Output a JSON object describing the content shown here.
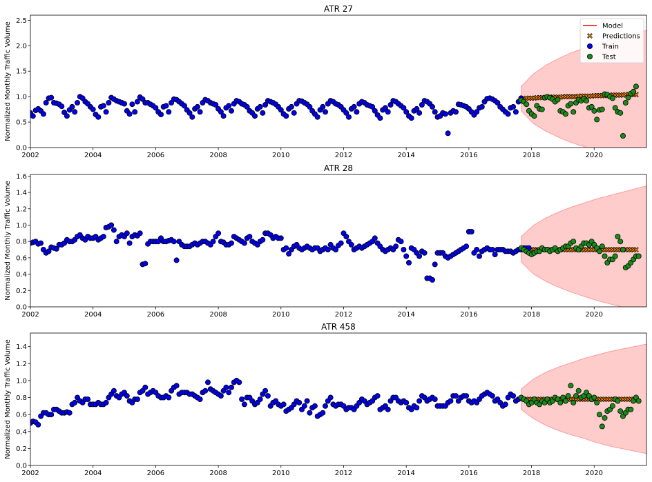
{
  "colors": {
    "model": "#e8291c",
    "band": "#ff9999",
    "predictions": "#ff8c00",
    "train": "#0000ee",
    "test": "#1b8a1b",
    "edge": "#000000"
  },
  "legend": {
    "model": "Model",
    "predictions": "Predictions",
    "train": "Train",
    "test": "Test",
    "placement": "top-right"
  },
  "chart_data": [
    {
      "type": "scatter",
      "title": "ATR 27",
      "xlabel": "",
      "ylabel": "Normalized Monthly Traffic Volume",
      "xlim": [
        2002.0,
        2021.67
      ],
      "ylim": [
        0,
        2.6
      ],
      "xticks": [
        2002,
        2004,
        2006,
        2008,
        2010,
        2012,
        2014,
        2016,
        2018,
        2020
      ],
      "yticks": [
        0.0,
        0.5,
        1.0,
        1.5,
        2.0,
        2.5
      ],
      "tick_decimals": 1,
      "has_legend": true,
      "train_start": 2002.0,
      "train": [
        0.68,
        0.62,
        0.73,
        0.76,
        0.72,
        0.66,
        0.88,
        0.97,
        0.98,
        0.88,
        0.87,
        0.85,
        0.81,
        0.69,
        0.62,
        0.74,
        0.8,
        0.7,
        0.88,
        1.0,
        0.97,
        0.9,
        0.86,
        0.8,
        0.75,
        0.65,
        0.6,
        0.8,
        0.82,
        0.7,
        0.88,
        0.98,
        0.95,
        0.92,
        0.9,
        0.88,
        0.86,
        0.72,
        0.66,
        0.85,
        0.7,
        0.9,
        0.99,
        0.95,
        0.88,
        0.88,
        0.85,
        0.82,
        0.78,
        0.7,
        0.65,
        0.8,
        0.82,
        0.7,
        0.88,
        0.95,
        0.94,
        0.9,
        0.86,
        0.82,
        0.74,
        0.68,
        0.6,
        0.76,
        0.8,
        0.7,
        0.88,
        0.94,
        0.92,
        0.88,
        0.86,
        0.84,
        0.76,
        0.7,
        0.62,
        0.78,
        0.82,
        0.72,
        0.86,
        0.92,
        0.9,
        0.86,
        0.84,
        0.8,
        0.72,
        0.68,
        0.62,
        0.76,
        0.8,
        0.68,
        0.84,
        0.92,
        0.9,
        0.88,
        0.85,
        0.8,
        0.74,
        0.66,
        0.62,
        0.76,
        0.8,
        0.68,
        0.86,
        0.92,
        0.91,
        0.88,
        0.85,
        0.8,
        0.72,
        0.66,
        0.6,
        0.74,
        0.8,
        0.7,
        0.86,
        0.92,
        0.9,
        0.86,
        0.84,
        0.8,
        0.74,
        0.68,
        0.6,
        0.76,
        0.8,
        0.7,
        0.86,
        0.9,
        0.88,
        0.84,
        0.82,
        0.8,
        0.72,
        0.64,
        0.58,
        0.74,
        0.78,
        0.7,
        0.84,
        0.92,
        0.9,
        0.86,
        0.82,
        0.78,
        0.7,
        0.62,
        0.58,
        0.72,
        0.76,
        0.68,
        0.84,
        0.92,
        0.9,
        0.86,
        0.8,
        0.7,
        0.6,
        0.62,
        0.68,
        0.66,
        0.28,
        0.68,
        0.72,
        0.7,
        0.85,
        0.84,
        0.82,
        0.8,
        0.76,
        0.7,
        0.64,
        0.7,
        0.78,
        0.8,
        0.9,
        0.96,
        0.97,
        0.95,
        0.92,
        0.88,
        0.8,
        0.75,
        0.7,
        0.66,
        0.78,
        0.8,
        0.7,
        0.9,
        0.97
      ],
      "test_start": 2017.67,
      "test": [
        0.93,
        0.9,
        0.85,
        0.72,
        0.66,
        0.62,
        0.82,
        0.76,
        0.75,
        0.98,
        1.0,
        0.98,
        0.95,
        0.9,
        0.94,
        0.72,
        0.7,
        0.66,
        0.82,
        0.86,
        0.7,
        0.88,
        0.94,
        0.92,
        0.96,
        0.92,
        0.78,
        0.8,
        0.72,
        0.55,
        0.74,
        0.75,
        1.05,
        1.04,
        1.0,
        0.97,
        0.78,
        0.7,
        0.68,
        0.23,
        0.88,
        0.98,
        1.06,
        1.1,
        1.2
      ],
      "pred_start": 2017.67,
      "pred": [
        0.96,
        0.96,
        0.97,
        0.97,
        0.97,
        0.97,
        0.98,
        0.98,
        0.98,
        0.98,
        0.98,
        0.99,
        0.99,
        0.99,
        0.99,
        0.99,
        1.0,
        1.0,
        1.0,
        1.0,
        1.0,
        1.0,
        1.01,
        1.01,
        1.01,
        1.01,
        1.01,
        1.01,
        1.02,
        1.02,
        1.02,
        1.02,
        1.02,
        1.02,
        1.03,
        1.03,
        1.03,
        1.03,
        1.03,
        1.03,
        1.04,
        1.04,
        1.04,
        1.04,
        1.04
      ],
      "band_upper": [
        1.2,
        1.45,
        1.62,
        1.75,
        1.86,
        1.95,
        2.04,
        2.11,
        2.18,
        2.24,
        2.3
      ],
      "band_lower": [
        0.72,
        0.47,
        0.32,
        0.2,
        0.1,
        0.02,
        -0.05,
        -0.12,
        -0.18,
        -0.24,
        -0.3
      ]
    },
    {
      "type": "scatter",
      "title": "ATR 28",
      "xlabel": "",
      "ylabel": "Normalized Monthly Traffic Volume",
      "xlim": [
        2002.0,
        2021.67
      ],
      "ylim": [
        0,
        1.62
      ],
      "xticks": [
        2002,
        2004,
        2006,
        2008,
        2010,
        2012,
        2014,
        2016,
        2018,
        2020
      ],
      "yticks": [
        0.0,
        0.2,
        0.4,
        0.6,
        0.8,
        1.0,
        1.2,
        1.4,
        1.6
      ],
      "tick_decimals": 1,
      "has_legend": false,
      "train_start": 2002.0,
      "train": [
        0.78,
        0.79,
        0.8,
        0.77,
        0.78,
        0.7,
        0.66,
        0.68,
        0.73,
        0.72,
        0.71,
        0.76,
        0.76,
        0.78,
        0.82,
        0.8,
        0.8,
        0.82,
        0.86,
        0.88,
        0.84,
        0.82,
        0.86,
        0.84,
        0.84,
        0.86,
        0.82,
        0.84,
        0.86,
        0.97,
        0.98,
        1.0,
        0.94,
        0.8,
        0.86,
        0.88,
        0.86,
        0.9,
        0.78,
        0.86,
        0.88,
        0.87,
        0.9,
        0.52,
        0.53,
        0.77,
        0.8,
        0.8,
        0.8,
        0.8,
        0.84,
        0.8,
        0.8,
        0.81,
        0.82,
        0.8,
        0.57,
        0.8,
        0.76,
        0.74,
        0.74,
        0.74,
        0.76,
        0.78,
        0.76,
        0.78,
        0.8,
        0.8,
        0.78,
        0.76,
        0.8,
        0.86,
        0.9,
        0.8,
        0.79,
        0.76,
        0.76,
        0.78,
        0.86,
        0.84,
        0.82,
        0.8,
        0.78,
        0.84,
        0.86,
        0.8,
        0.78,
        0.76,
        0.8,
        0.82,
        0.9,
        0.9,
        0.88,
        0.84,
        0.86,
        0.84,
        0.84,
        0.7,
        0.72,
        0.65,
        0.7,
        0.74,
        0.76,
        0.72,
        0.7,
        0.72,
        0.74,
        0.72,
        0.7,
        0.72,
        0.72,
        0.68,
        0.7,
        0.72,
        0.7,
        0.76,
        0.72,
        0.7,
        0.75,
        0.78,
        0.9,
        0.86,
        0.8,
        0.76,
        0.7,
        0.72,
        0.74,
        0.72,
        0.74,
        0.76,
        0.78,
        0.8,
        0.84,
        0.78,
        0.74,
        0.7,
        0.68,
        0.7,
        0.72,
        0.7,
        0.74,
        0.82,
        0.8,
        0.7,
        0.62,
        0.54,
        0.72,
        0.7,
        0.66,
        0.62,
        0.68,
        0.66,
        0.35,
        0.35,
        0.33,
        0.52,
        0.66,
        0.66,
        0.66,
        0.62,
        0.6,
        0.62,
        0.64,
        0.66,
        0.68,
        0.7,
        0.72,
        0.74,
        0.92,
        0.92,
        0.66,
        0.7,
        0.62,
        0.68,
        0.7,
        0.72,
        0.7,
        0.7,
        0.64,
        0.7,
        0.7,
        0.7,
        0.68,
        0.68,
        0.68,
        0.66,
        0.68,
        0.7,
        0.7,
        0.72,
        0.72,
        0.72
      ],
      "test_start": 2017.67,
      "test": [
        0.72,
        0.7,
        0.68,
        0.66,
        0.64,
        0.66,
        0.68,
        0.68,
        0.72,
        0.7,
        0.7,
        0.68,
        0.7,
        0.72,
        0.68,
        0.7,
        0.72,
        0.74,
        0.74,
        0.78,
        0.8,
        0.72,
        0.7,
        0.74,
        0.78,
        0.78,
        0.76,
        0.8,
        0.76,
        0.72,
        0.68,
        0.74,
        0.62,
        0.54,
        0.58,
        0.58,
        0.62,
        0.86,
        0.8,
        0.7,
        0.48,
        0.5,
        0.54,
        0.58,
        0.62,
        0.62
      ],
      "pred_start": 2017.67,
      "pred": [
        0.7,
        0.7,
        0.7,
        0.7,
        0.7,
        0.7,
        0.7,
        0.7,
        0.7,
        0.7,
        0.7,
        0.7,
        0.7,
        0.7,
        0.7,
        0.7,
        0.7,
        0.7,
        0.7,
        0.7,
        0.7,
        0.7,
        0.7,
        0.7,
        0.7,
        0.7,
        0.7,
        0.7,
        0.7,
        0.7,
        0.7,
        0.7,
        0.7,
        0.7,
        0.7,
        0.7,
        0.7,
        0.7,
        0.7,
        0.7,
        0.7,
        0.7,
        0.7,
        0.7,
        0.7
      ],
      "band_upper": [
        0.86,
        1.0,
        1.09,
        1.16,
        1.22,
        1.27,
        1.32,
        1.36,
        1.4,
        1.44,
        1.48
      ],
      "band_lower": [
        0.55,
        0.4,
        0.31,
        0.24,
        0.18,
        0.13,
        0.08,
        0.04,
        0.0,
        -0.04,
        -0.08
      ]
    },
    {
      "type": "scatter",
      "title": "ATR 458",
      "xlabel": "",
      "ylabel": "Normalized Monthly Traffic Volume",
      "xlim": [
        2002.0,
        2021.67
      ],
      "ylim": [
        0,
        1.56
      ],
      "xticks": [
        2002,
        2004,
        2006,
        2008,
        2010,
        2012,
        2014,
        2016,
        2018,
        2020
      ],
      "yticks": [
        0.0,
        0.2,
        0.4,
        0.6,
        0.8,
        1.0,
        1.2,
        1.4
      ],
      "tick_decimals": 1,
      "has_legend": false,
      "train_start": 2002.0,
      "train": [
        0.5,
        0.52,
        0.51,
        0.48,
        0.58,
        0.62,
        0.62,
        0.6,
        0.6,
        0.66,
        0.66,
        0.64,
        0.62,
        0.62,
        0.63,
        0.62,
        0.72,
        0.74,
        0.8,
        0.76,
        0.74,
        0.78,
        0.78,
        0.72,
        0.72,
        0.72,
        0.74,
        0.72,
        0.72,
        0.74,
        0.8,
        0.84,
        0.88,
        0.82,
        0.8,
        0.84,
        0.86,
        0.82,
        0.76,
        0.74,
        0.78,
        0.78,
        0.86,
        0.88,
        0.92,
        0.84,
        0.86,
        0.88,
        0.86,
        0.82,
        0.8,
        0.8,
        0.82,
        0.8,
        0.88,
        0.92,
        0.94,
        0.84,
        0.86,
        0.86,
        0.86,
        0.84,
        0.84,
        0.82,
        0.8,
        0.78,
        0.86,
        0.88,
        0.98,
        0.9,
        0.88,
        0.86,
        0.84,
        0.82,
        0.88,
        0.92,
        0.86,
        0.92,
        0.98,
        1.0,
        0.98,
        0.78,
        0.72,
        0.8,
        0.8,
        0.76,
        0.72,
        0.74,
        0.78,
        0.84,
        0.88,
        0.82,
        0.7,
        0.74,
        0.76,
        0.72,
        0.7,
        0.72,
        0.64,
        0.66,
        0.68,
        0.72,
        0.76,
        0.74,
        0.66,
        0.7,
        0.76,
        0.62,
        0.68,
        0.7,
        0.58,
        0.6,
        0.62,
        0.7,
        0.76,
        0.8,
        0.72,
        0.7,
        0.72,
        0.72,
        0.7,
        0.66,
        0.68,
        0.68,
        0.66,
        0.7,
        0.74,
        0.78,
        0.76,
        0.72,
        0.74,
        0.76,
        0.8,
        0.82,
        0.66,
        0.68,
        0.7,
        0.66,
        0.76,
        0.8,
        0.8,
        0.76,
        0.74,
        0.76,
        0.74,
        0.68,
        0.66,
        0.7,
        0.68,
        0.76,
        0.82,
        0.8,
        0.76,
        0.78,
        0.8,
        0.78,
        0.7,
        0.7,
        0.7,
        0.7,
        0.74,
        0.76,
        0.82,
        0.82,
        0.76,
        0.8,
        0.82,
        0.82,
        0.76,
        0.74,
        0.76,
        0.74,
        0.78,
        0.82,
        0.84,
        0.86,
        0.84,
        0.82,
        0.76,
        0.78,
        0.74,
        0.7,
        0.72,
        0.8,
        0.84,
        0.82,
        0.76,
        0.78
      ],
      "test_start": 2017.67,
      "test": [
        0.8,
        0.78,
        0.76,
        0.72,
        0.74,
        0.78,
        0.74,
        0.72,
        0.76,
        0.74,
        0.78,
        0.74,
        0.76,
        0.8,
        0.78,
        0.74,
        0.8,
        0.76,
        0.82,
        0.94,
        0.74,
        0.82,
        0.88,
        0.8,
        0.82,
        0.86,
        0.82,
        0.78,
        0.8,
        0.74,
        0.6,
        0.46,
        0.56,
        0.64,
        0.66,
        0.7,
        0.78,
        0.76,
        0.64,
        0.58,
        0.62,
        0.66,
        0.66,
        0.76,
        0.8,
        0.76
      ],
      "pred_start": 2017.67,
      "pred": [
        0.79,
        0.78,
        0.78,
        0.78,
        0.78,
        0.78,
        0.78,
        0.78,
        0.78,
        0.78,
        0.78,
        0.78,
        0.78,
        0.78,
        0.78,
        0.78,
        0.78,
        0.78,
        0.78,
        0.78,
        0.78,
        0.78,
        0.78,
        0.78,
        0.78,
        0.78,
        0.78,
        0.78,
        0.78,
        0.78,
        0.78,
        0.78,
        0.78,
        0.78,
        0.78,
        0.78,
        0.78,
        0.78,
        0.78,
        0.78,
        0.78,
        0.78,
        0.78,
        0.78,
        0.78
      ],
      "band_upper": [
        0.9,
        1.02,
        1.1,
        1.16,
        1.21,
        1.26,
        1.3,
        1.34,
        1.37,
        1.4,
        1.43
      ],
      "band_lower": [
        0.66,
        0.55,
        0.47,
        0.41,
        0.36,
        0.32,
        0.27,
        0.23,
        0.2,
        0.17,
        0.14
      ]
    }
  ]
}
